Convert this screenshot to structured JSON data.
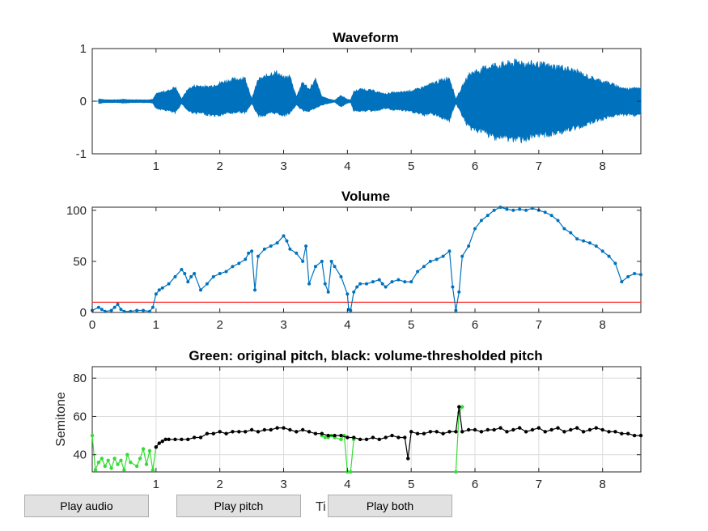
{
  "colors": {
    "waveform": "#0072bd",
    "volume": "#0072bd",
    "threshold": "#ff2a2a",
    "pitch_original": "#33dd33",
    "pitch_thresholded": "#000000"
  },
  "buttons": {
    "play_audio": "Play audio",
    "play_pitch": "Play pitch",
    "play_both": "Play both"
  },
  "hidden_xlabel": "Ti",
  "chart_data": [
    {
      "type": "line",
      "title": "Waveform",
      "xlabel": "",
      "ylabel": "",
      "xlim": [
        0,
        8.6
      ],
      "ylim": [
        -1,
        1
      ],
      "xticks": [
        1,
        2,
        3,
        4,
        5,
        6,
        7,
        8
      ],
      "yticks": [
        -1,
        0,
        1
      ],
      "grid": false,
      "envelope": {
        "x": [
          0.1,
          0.2,
          0.3,
          0.4,
          0.5,
          0.6,
          0.7,
          0.8,
          0.9,
          0.95,
          1.0,
          1.1,
          1.2,
          1.3,
          1.4,
          1.5,
          1.6,
          1.7,
          1.8,
          1.9,
          2.0,
          2.1,
          2.2,
          2.3,
          2.4,
          2.5,
          2.6,
          2.7,
          2.8,
          2.9,
          3.0,
          3.1,
          3.2,
          3.3,
          3.4,
          3.5,
          3.6,
          3.7,
          3.8,
          3.9,
          4.0,
          4.05,
          4.1,
          4.2,
          4.3,
          4.4,
          4.5,
          4.6,
          4.7,
          4.8,
          4.9,
          5.0,
          5.1,
          5.2,
          5.3,
          5.4,
          5.5,
          5.6,
          5.7,
          5.8,
          5.9,
          6.0,
          6.1,
          6.2,
          6.3,
          6.4,
          6.5,
          6.6,
          6.7,
          6.8,
          6.9,
          7.0,
          7.1,
          7.2,
          7.3,
          7.4,
          7.5,
          7.6,
          7.7,
          7.8,
          7.9,
          8.0,
          8.1,
          8.2,
          8.3,
          8.4,
          8.5,
          8.6
        ],
        "top": [
          0.05,
          0.03,
          0.03,
          0.03,
          0.04,
          0.03,
          0.03,
          0.03,
          0.03,
          0.04,
          0.15,
          0.2,
          0.22,
          0.3,
          0.05,
          0.25,
          0.32,
          0.32,
          0.3,
          0.33,
          0.38,
          0.42,
          0.45,
          0.47,
          0.48,
          0.05,
          0.45,
          0.5,
          0.58,
          0.6,
          0.48,
          0.52,
          0.1,
          0.4,
          0.25,
          0.45,
          0.1,
          0.05,
          0.02,
          0.12,
          0.04,
          0.03,
          0.2,
          0.25,
          0.24,
          0.22,
          0.18,
          0.15,
          0.18,
          0.18,
          0.2,
          0.22,
          0.25,
          0.3,
          0.35,
          0.4,
          0.45,
          0.5,
          0.05,
          0.3,
          0.55,
          0.62,
          0.65,
          0.72,
          0.75,
          0.75,
          0.78,
          0.8,
          0.82,
          0.78,
          0.78,
          0.76,
          0.75,
          0.72,
          0.72,
          0.7,
          0.65,
          0.62,
          0.55,
          0.5,
          0.45,
          0.42,
          0.38,
          0.33,
          0.28,
          0.25,
          0.3,
          0.25
        ],
        "bottom": [
          -0.05,
          -0.03,
          -0.03,
          -0.03,
          -0.04,
          -0.03,
          -0.03,
          -0.03,
          -0.03,
          -0.04,
          -0.15,
          -0.18,
          -0.2,
          -0.25,
          -0.05,
          -0.2,
          -0.25,
          -0.25,
          -0.28,
          -0.3,
          -0.3,
          -0.25,
          -0.25,
          -0.22,
          -0.25,
          -0.05,
          -0.3,
          -0.3,
          -0.25,
          -0.25,
          -0.3,
          -0.25,
          -0.08,
          -0.2,
          -0.2,
          -0.15,
          -0.08,
          -0.05,
          -0.02,
          -0.12,
          -0.04,
          -0.03,
          -0.2,
          -0.2,
          -0.2,
          -0.2,
          -0.18,
          -0.15,
          -0.18,
          -0.18,
          -0.2,
          -0.22,
          -0.25,
          -0.3,
          -0.25,
          -0.3,
          -0.35,
          -0.4,
          -0.05,
          -0.3,
          -0.55,
          -0.6,
          -0.62,
          -0.7,
          -0.75,
          -0.75,
          -0.78,
          -0.8,
          -0.8,
          -0.78,
          -0.78,
          -0.72,
          -0.7,
          -0.7,
          -0.65,
          -0.62,
          -0.6,
          -0.55,
          -0.5,
          -0.45,
          -0.4,
          -0.38,
          -0.32,
          -0.3,
          -0.28,
          -0.28,
          -0.3,
          -0.25
        ]
      }
    },
    {
      "type": "line",
      "title": "Volume",
      "xlabel": "",
      "ylabel": "",
      "xlim": [
        0,
        8.6
      ],
      "ylim": [
        0,
        103
      ],
      "xticks": [
        0,
        1,
        2,
        3,
        4,
        5,
        6,
        7,
        8
      ],
      "yticks": [
        0,
        50,
        100
      ],
      "grid": false,
      "threshold": 10,
      "series": [
        {
          "x": [
            0,
            0.1,
            0.15,
            0.2,
            0.3,
            0.35,
            0.4,
            0.45,
            0.5,
            0.6,
            0.7,
            0.8,
            0.9,
            0.95,
            1.0,
            1.05,
            1.1,
            1.2,
            1.3,
            1.4,
            1.45,
            1.5,
            1.55,
            1.6,
            1.7,
            1.8,
            1.9,
            2.0,
            2.1,
            2.2,
            2.3,
            2.4,
            2.45,
            2.5,
            2.55,
            2.6,
            2.7,
            2.8,
            2.9,
            3.0,
            3.05,
            3.1,
            3.2,
            3.3,
            3.35,
            3.4,
            3.5,
            3.6,
            3.65,
            3.7,
            3.75,
            3.8,
            3.9,
            4.0,
            4.02,
            4.05,
            4.1,
            4.15,
            4.2,
            4.3,
            4.4,
            4.5,
            4.55,
            4.6,
            4.7,
            4.8,
            4.9,
            5.0,
            5.1,
            5.2,
            5.3,
            5.4,
            5.5,
            5.6,
            5.65,
            5.7,
            5.75,
            5.8,
            5.9,
            6.0,
            6.1,
            6.2,
            6.3,
            6.4,
            6.5,
            6.6,
            6.7,
            6.8,
            6.9,
            7.0,
            7.1,
            7.2,
            7.3,
            7.4,
            7.5,
            7.6,
            7.7,
            7.8,
            7.9,
            8.0,
            8.1,
            8.2,
            8.3,
            8.4,
            8.5,
            8.6
          ],
          "values": [
            2,
            5,
            3,
            1,
            2,
            5,
            8,
            3,
            1,
            1,
            2,
            2,
            1,
            5,
            18,
            22,
            24,
            28,
            35,
            42,
            38,
            30,
            35,
            38,
            22,
            28,
            35,
            38,
            40,
            45,
            48,
            52,
            58,
            60,
            22,
            55,
            62,
            65,
            68,
            75,
            70,
            62,
            58,
            50,
            65,
            28,
            45,
            50,
            28,
            20,
            50,
            45,
            35,
            18,
            3,
            2,
            20,
            25,
            28,
            28,
            30,
            32,
            28,
            25,
            30,
            32,
            30,
            30,
            40,
            45,
            50,
            52,
            55,
            60,
            25,
            2,
            20,
            55,
            65,
            82,
            90,
            95,
            100,
            103,
            101,
            100,
            101,
            100,
            102,
            100,
            98,
            95,
            90,
            82,
            78,
            72,
            70,
            68,
            65,
            60,
            55,
            48,
            30,
            35,
            38,
            37
          ]
        }
      ]
    },
    {
      "type": "line",
      "title": "Green: original pitch, black: volume-thresholded pitch",
      "xlabel": "",
      "ylabel": "Semitone",
      "xlim": [
        0,
        8.6
      ],
      "ylim": [
        31,
        86
      ],
      "xticks": [
        1,
        2,
        3,
        4,
        5,
        6,
        7,
        8
      ],
      "yticks": [
        40,
        60,
        80
      ],
      "grid": true,
      "series": [
        {
          "name": "original pitch",
          "x": [
            0,
            0.05,
            0.1,
            0.15,
            0.2,
            0.25,
            0.3,
            0.35,
            0.4,
            0.45,
            0.5,
            0.55,
            0.6,
            0.7,
            0.75,
            0.8,
            0.85,
            0.9,
            0.95,
            1.0,
            3.6,
            3.65,
            3.7,
            3.75,
            3.8,
            3.9,
            3.95,
            4.0,
            4.05,
            4.1,
            5.7,
            5.75,
            5.8
          ],
          "values": [
            50,
            32,
            36,
            38,
            34,
            37,
            33,
            38,
            35,
            37,
            32,
            40,
            36,
            34,
            38,
            43,
            35,
            42,
            32,
            44,
            50,
            49,
            49,
            50,
            49,
            48,
            50,
            31,
            31,
            48,
            31,
            62,
            65
          ]
        },
        {
          "name": "volume-thresholded pitch",
          "x": [
            1.0,
            1.05,
            1.1,
            1.15,
            1.2,
            1.3,
            1.4,
            1.5,
            1.6,
            1.7,
            1.8,
            1.9,
            2.0,
            2.1,
            2.2,
            2.3,
            2.4,
            2.5,
            2.6,
            2.7,
            2.8,
            2.9,
            3.0,
            3.1,
            3.2,
            3.3,
            3.4,
            3.5,
            3.6,
            3.7,
            3.8,
            3.9,
            4.0,
            4.1,
            4.2,
            4.3,
            4.4,
            4.5,
            4.6,
            4.7,
            4.8,
            4.9,
            4.95,
            5.0,
            5.1,
            5.2,
            5.3,
            5.4,
            5.5,
            5.6,
            5.7,
            5.75,
            5.8,
            5.9,
            6.0,
            6.1,
            6.2,
            6.3,
            6.4,
            6.5,
            6.6,
            6.7,
            6.8,
            6.9,
            7.0,
            7.1,
            7.2,
            7.3,
            7.4,
            7.5,
            7.6,
            7.7,
            7.8,
            7.9,
            8.0,
            8.1,
            8.2,
            8.3,
            8.4,
            8.5,
            8.6
          ],
          "values": [
            44,
            46,
            47,
            48,
            48,
            48,
            48,
            48,
            49,
            49,
            51,
            51,
            52,
            51,
            52,
            52,
            52,
            53,
            52,
            53,
            53,
            54,
            54,
            53,
            52,
            53,
            52,
            51,
            51,
            50,
            50,
            50,
            49,
            49,
            48,
            48,
            49,
            48,
            49,
            50,
            49,
            49,
            38,
            52,
            51,
            51,
            52,
            52,
            51,
            52,
            52,
            65,
            52,
            53,
            53,
            52,
            53,
            53,
            54,
            52,
            53,
            54,
            52,
            53,
            54,
            52,
            53,
            54,
            52,
            53,
            54,
            52,
            53,
            54,
            53,
            52,
            52,
            51,
            51,
            50,
            50
          ]
        }
      ]
    }
  ]
}
